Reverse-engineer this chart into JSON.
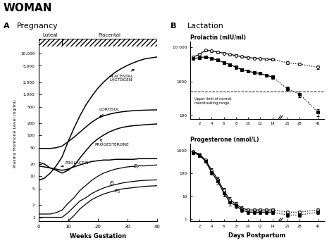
{
  "title": "WOMAN",
  "panel_A_label": "A",
  "panel_A_subtitle": "Pregnancy",
  "panel_B_label": "B",
  "panel_B_subtitle": "Lactation",
  "bg_color": "#ffffff",
  "pregnancy": {
    "weeks": [
      0,
      2,
      4,
      6,
      8,
      10,
      12,
      14,
      16,
      18,
      20,
      22,
      24,
      26,
      28,
      30,
      32,
      34,
      36,
      38,
      40
    ],
    "placental_lactogen": [
      8,
      9,
      12,
      18,
      30,
      70,
      150,
      300,
      550,
      900,
      1400,
      2000,
      2700,
      3500,
      4300,
      5100,
      5900,
      6700,
      7400,
      7800,
      8200
    ],
    "cortisol": [
      48,
      48,
      48,
      50,
      55,
      70,
      90,
      120,
      160,
      210,
      260,
      300,
      330,
      355,
      375,
      390,
      400,
      408,
      413,
      417,
      420
    ],
    "progesterone": [
      22,
      20,
      16,
      14,
      12,
      14,
      18,
      28,
      42,
      62,
      82,
      102,
      122,
      140,
      155,
      165,
      172,
      177,
      182,
      186,
      190
    ],
    "prolactin": [
      18,
      17,
      16,
      15,
      14,
      15,
      17,
      19,
      21,
      23,
      24,
      25,
      25,
      26,
      26,
      26,
      26,
      27,
      27,
      27,
      27
    ],
    "E2": [
      1.2,
      1.2,
      1.2,
      1.3,
      1.5,
      2.2,
      3,
      4.5,
      6,
      8,
      10,
      12,
      13.5,
      15,
      16,
      17,
      17.5,
      18,
      18,
      18.5,
      19
    ],
    "E1": [
      1,
      1,
      1,
      1,
      1,
      1.3,
      1.8,
      2.5,
      3,
      3.8,
      4.5,
      5.2,
      5.8,
      6.3,
      6.8,
      7.2,
      7.5,
      7.8,
      8,
      8.1,
      8.2
    ],
    "E3": [
      0.5,
      0.5,
      0.5,
      0.5,
      0.6,
      0.8,
      1.1,
      1.6,
      2.1,
      2.7,
      3.2,
      3.7,
      4.1,
      4.5,
      4.9,
      5.1,
      5.3,
      5.5,
      5.7,
      5.8,
      5.9
    ],
    "luteal_end": 8,
    "ylabel": "Plasma Hormone Level (ng/ml)",
    "xlabel": "Weeks Gestation",
    "yticks": [
      1,
      2,
      5,
      10,
      20,
      50,
      100,
      200,
      500,
      1000,
      2000,
      5000,
      10000
    ],
    "ytick_labels": [
      "1",
      "2",
      "5",
      "10",
      "20",
      "50",
      "100",
      "200",
      "500",
      "1,000",
      "2,000",
      "5,000",
      "10,000"
    ],
    "xticks": [
      0,
      10,
      20,
      30,
      40
    ],
    "ylim": [
      0.8,
      15000
    ],
    "xlim": [
      0,
      40
    ]
  },
  "lactation": {
    "days": [
      1,
      2,
      3,
      4,
      5,
      6,
      7,
      8,
      9,
      10,
      11,
      12,
      13,
      14,
      21,
      28,
      42
    ],
    "prolactin_open": [
      5200,
      6200,
      8200,
      7800,
      7200,
      6700,
      6200,
      5700,
      5300,
      5000,
      4800,
      4600,
      4500,
      4400,
      3500,
      3200,
      2600
    ],
    "prolactin_filled": [
      4600,
      5000,
      5200,
      4700,
      4200,
      3600,
      3100,
      2600,
      2200,
      2000,
      1800,
      1700,
      1500,
      1350,
      600,
      420,
      125
    ],
    "prolactin_err_open": [
      500,
      600,
      700,
      700,
      600,
      500,
      450,
      400,
      380,
      350,
      320,
      300,
      300,
      300,
      300,
      300,
      280
    ],
    "prolactin_err_filled": [
      400,
      450,
      500,
      430,
      380,
      320,
      270,
      250,
      210,
      200,
      170,
      160,
      150,
      140,
      100,
      80,
      30
    ],
    "upper_limit_prolactin": 500,
    "progesterone_open": [
      900,
      700,
      380,
      140,
      55,
      18,
      7,
      4.5,
      3,
      2.5,
      2.5,
      2.5,
      2.5,
      2.5,
      2,
      2,
      2.5
    ],
    "progesterone_filled": [
      820,
      620,
      340,
      110,
      45,
      14,
      5.5,
      3.8,
      2.5,
      2,
      2,
      2,
      2,
      2,
      1.5,
      1.5,
      2
    ],
    "progesterone_err_open": [
      100,
      80,
      50,
      28,
      14,
      5,
      2,
      1,
      0.5,
      0.5,
      0.5,
      0.5,
      0.5,
      0.5,
      0.4,
      0.4,
      0.5
    ],
    "progesterone_err_filled": [
      80,
      65,
      40,
      22,
      11,
      4,
      1.5,
      0.8,
      0.4,
      0.4,
      0.4,
      0.4,
      0.4,
      0.4,
      0.3,
      0.3,
      0.4
    ],
    "prolactin_ylabel": "Prolactin (mIU/ml)",
    "prolactin_ylim": [
      80,
      15000
    ],
    "prolactin_yticks": [
      100,
      1000,
      10000
    ],
    "prolactin_ytick_labels": [
      "100",
      "1000",
      "10 000"
    ],
    "progesterone_ylabel": "Progesterone (nmol/L)",
    "progesterone_ylim": [
      0.8,
      2000
    ],
    "progesterone_yticks": [
      1,
      10,
      100,
      1000
    ],
    "progesterone_ytick_labels": [
      "1",
      "10",
      "100",
      "1000"
    ],
    "xlabel": "Days Postpartum",
    "xtick_labels": [
      "2",
      "4",
      "6",
      "8",
      "10",
      "12",
      "14",
      "21",
      "28",
      "42"
    ],
    "xtick_positions": [
      2,
      4,
      6,
      8,
      10,
      12,
      14,
      21,
      28,
      42
    ],
    "solid_cutoff": 14,
    "upper_limit_text": "Upper limit of normal\nmenstruating range"
  }
}
